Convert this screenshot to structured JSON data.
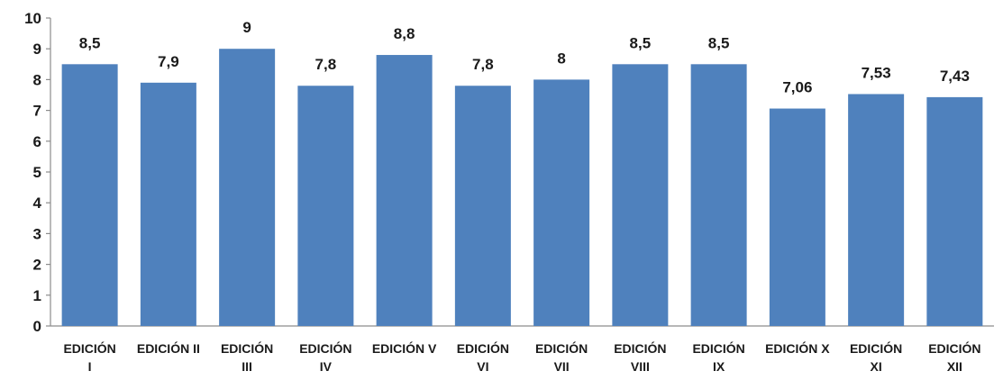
{
  "chart_data": {
    "type": "bar",
    "categories": [
      [
        "EDICIÓN",
        "I"
      ],
      [
        "EDICIÓN II"
      ],
      [
        "EDICIÓN",
        "III"
      ],
      [
        "EDICIÓN",
        "IV"
      ],
      [
        "EDICIÓN V"
      ],
      [
        "EDICIÓN",
        "VI"
      ],
      [
        "EDICIÓN",
        "VII"
      ],
      [
        "EDICIÓN",
        "VIII"
      ],
      [
        "EDICIÓN",
        "IX"
      ],
      [
        "EDICIÓN X"
      ],
      [
        "EDICIÓN",
        "XI"
      ],
      [
        "EDICIÓN",
        "XII"
      ]
    ],
    "values": [
      8.5,
      7.9,
      9,
      7.8,
      8.8,
      7.8,
      8,
      8.5,
      8.5,
      7.06,
      7.53,
      7.43
    ],
    "data_labels": [
      "8,5",
      "7,9",
      "9",
      "7,8",
      "8,8",
      "7,8",
      "8",
      "8,5",
      "8,5",
      "7,06",
      "7,53",
      "7,43"
    ],
    "y_ticks": [
      "0",
      "1",
      "2",
      "3",
      "4",
      "5",
      "6",
      "7",
      "8",
      "9",
      "10"
    ],
    "ylim": [
      0,
      10
    ],
    "grid": false,
    "legend": "none",
    "bar_color": "#4f81bd",
    "axis_color": "#8c8c8c"
  }
}
